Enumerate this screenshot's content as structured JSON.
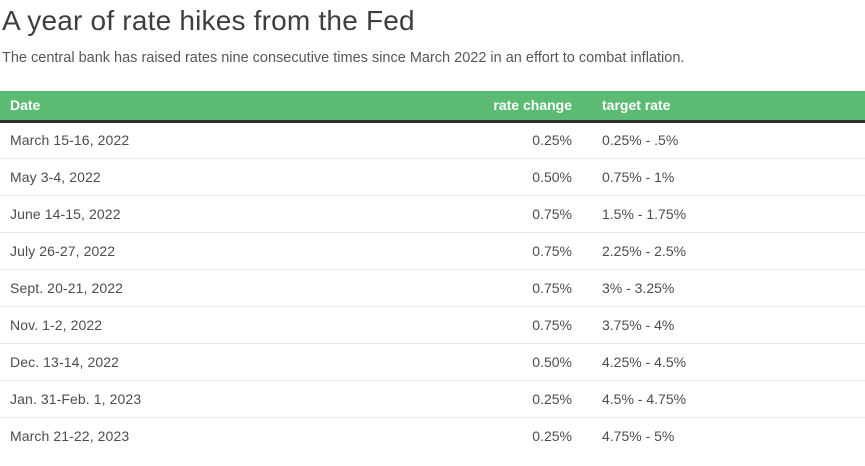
{
  "header": {
    "title": "A year of rate hikes from the Fed",
    "subtitle": "The central bank has raised rates nine consecutive times since March 2022 in an effort to combat inflation."
  },
  "colors": {
    "header_bg": "#5cbb73",
    "header_text": "#ffffff",
    "header_underline": "#2e2e2e",
    "row_divider": "#ebebeb",
    "title_text": "#3e3e3e",
    "subtitle_text": "#575757",
    "cell_text": "#4d4d4d"
  },
  "table": {
    "columns": [
      {
        "label": "Date"
      },
      {
        "label": "rate change"
      },
      {
        "label": "target rate"
      }
    ],
    "rows": [
      {
        "date": "March 15-16, 2022",
        "rate_change": "0.25%",
        "target_rate": "0.25% - .5%"
      },
      {
        "date": "May 3-4, 2022",
        "rate_change": "0.50%",
        "target_rate": "0.75% - 1%"
      },
      {
        "date": "June 14-15, 2022",
        "rate_change": "0.75%",
        "target_rate": "1.5% - 1.75%"
      },
      {
        "date": "July 26-27, 2022",
        "rate_change": "0.75%",
        "target_rate": "2.25% - 2.5%"
      },
      {
        "date": "Sept. 20-21, 2022",
        "rate_change": "0.75%",
        "target_rate": "3% - 3.25%"
      },
      {
        "date": "Nov. 1-2, 2022",
        "rate_change": "0.75%",
        "target_rate": "3.75% - 4%"
      },
      {
        "date": "Dec. 13-14, 2022",
        "rate_change": "0.50%",
        "target_rate": "4.25% - 4.5%"
      },
      {
        "date": "Jan. 31-Feb. 1, 2023",
        "rate_change": "0.25%",
        "target_rate": "4.5% - 4.75%"
      },
      {
        "date": "March 21-22, 2023",
        "rate_change": "0.25%",
        "target_rate": "4.75% - 5%"
      }
    ]
  },
  "chart_data": {
    "type": "table",
    "title": "A year of rate hikes from the Fed",
    "subtitle": "The central bank has raised rates nine consecutive times since March 2022 in an effort to combat inflation.",
    "columns": [
      "Date",
      "rate change",
      "target rate"
    ],
    "rows": [
      [
        "March 15-16, 2022",
        "0.25%",
        "0.25% - .5%"
      ],
      [
        "May 3-4, 2022",
        "0.50%",
        "0.75% - 1%"
      ],
      [
        "June 14-15, 2022",
        "0.75%",
        "1.5% - 1.75%"
      ],
      [
        "July 26-27, 2022",
        "0.75%",
        "2.25% - 2.5%"
      ],
      [
        "Sept. 20-21, 2022",
        "0.75%",
        "3% - 3.25%"
      ],
      [
        "Nov. 1-2, 2022",
        "0.75%",
        "3.75% - 4%"
      ],
      [
        "Dec. 13-14, 2022",
        "0.50%",
        "4.25% - 4.5%"
      ],
      [
        "Jan. 31-Feb. 1, 2023",
        "0.25%",
        "4.5% - 4.75%"
      ],
      [
        "March 21-22, 2023",
        "0.25%",
        "4.75% - 5%"
      ]
    ],
    "layout": {
      "header_style": "green-bar",
      "grid": "horizontal-dividers",
      "legend": "none"
    }
  }
}
